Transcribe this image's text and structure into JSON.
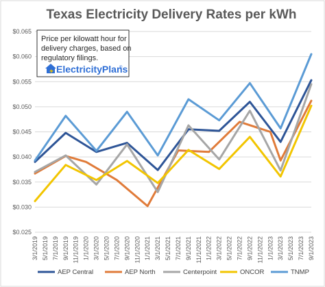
{
  "chart_data": {
    "type": "line",
    "title": "Texas Electricity Delivery Rates per kWh",
    "annotation": {
      "lines": [
        "Price per kilowatt hour for",
        "delivery charges, based on",
        "regulatory filings."
      ],
      "brand": "ElectricityPlans",
      "brand_mark": "®",
      "logo_icon": "house-icon"
    },
    "categories": [
      "3/1/2019",
      "5/1/2019",
      "7/1/2019",
      "9/1/2019",
      "11/1/2019",
      "1/1/2020",
      "3/1/2020",
      "5/1/2020",
      "7/1/2020",
      "9/1/2020",
      "11/1/2020",
      "1/1/2021",
      "3/1/2021",
      "5/1/2021",
      "7/1/2021",
      "9/1/2021",
      "11/1/2021",
      "1/1/2022",
      "3/1/2022",
      "5/1/2022",
      "7/1/2022",
      "9/1/2022",
      "11/1/2022",
      "1/1/2023",
      "3/1/2023",
      "5/1/2023",
      "7/1/2023",
      "9/1/2023"
    ],
    "yticks": [
      "$0.025",
      "$0.030",
      "$0.035",
      "$0.040",
      "$0.045",
      "$0.050",
      "$0.055",
      "$0.060",
      "$0.065"
    ],
    "ylim": [
      0.025,
      0.065
    ],
    "grid": true,
    "legend_position": "bottom",
    "series": [
      {
        "name": "AEP Central",
        "color": "#2e5597",
        "x": [
          0,
          3,
          6,
          9,
          12,
          15,
          18,
          21,
          24,
          27
        ],
        "values": [
          0.039,
          0.0448,
          0.041,
          0.0428,
          0.0374,
          0.0455,
          0.0452,
          0.051,
          0.043,
          0.0553
        ]
      },
      {
        "name": "AEP North",
        "color": "#e07b39",
        "x": [
          0,
          3,
          5,
          8,
          11,
          14,
          17,
          20,
          23,
          24,
          27
        ],
        "values": [
          0.0367,
          0.0402,
          0.039,
          0.0354,
          0.0302,
          0.0413,
          0.041,
          0.047,
          0.045,
          0.0393,
          0.0512
        ]
      },
      {
        "name": "Centerpoint",
        "color": "#a6a6a6",
        "x": [
          0,
          3,
          6,
          9,
          12,
          15,
          18,
          21,
          24,
          27
        ],
        "values": [
          0.037,
          0.0403,
          0.0345,
          0.0425,
          0.033,
          0.0463,
          0.0395,
          0.0492,
          0.0373,
          0.0545
        ]
      },
      {
        "name": "ONCOR",
        "color": "#f2c500",
        "x": [
          0,
          3,
          6,
          9,
          12,
          15,
          18,
          21,
          24,
          27
        ],
        "values": [
          0.0312,
          0.0384,
          0.0354,
          0.0392,
          0.0348,
          0.0414,
          0.0376,
          0.044,
          0.0361,
          0.0502
        ]
      },
      {
        "name": "TNMP",
        "color": "#5b9bd5",
        "x": [
          0,
          3,
          6,
          9,
          12,
          15,
          18,
          21,
          24,
          27
        ],
        "values": [
          0.0393,
          0.0482,
          0.0412,
          0.049,
          0.0403,
          0.0515,
          0.0473,
          0.0547,
          0.0457,
          0.0605
        ]
      }
    ]
  }
}
